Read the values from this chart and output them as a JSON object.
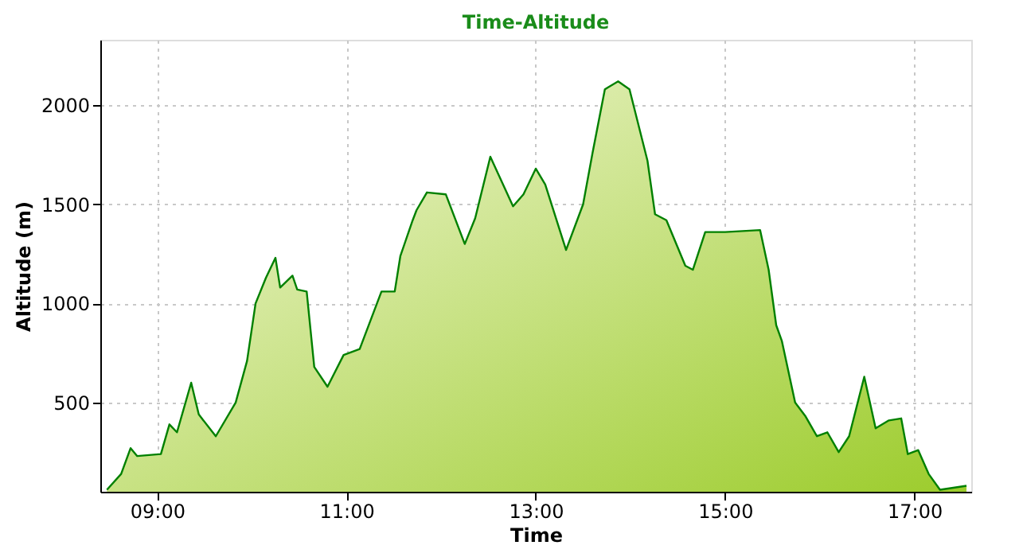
{
  "chart_data": {
    "type": "area",
    "title": "Time-Altitude",
    "xlabel": "Time",
    "ylabel": "Altitude (m)",
    "xlim": [
      8.4,
      17.6
    ],
    "ylim": [
      50,
      2330
    ],
    "xticks": [
      {
        "value": 9,
        "label": "09:00"
      },
      {
        "value": 11,
        "label": "11:00"
      },
      {
        "value": 13,
        "label": "13:00"
      },
      {
        "value": 15,
        "label": "15:00"
      },
      {
        "value": 17,
        "label": "17:00"
      }
    ],
    "yticks": [
      500,
      1000,
      1500,
      2000
    ],
    "grid": true,
    "series": [
      {
        "color": "#008000",
        "x": [
          8.47,
          8.62,
          8.72,
          8.79,
          9.04,
          9.13,
          9.21,
          9.36,
          9.44,
          9.62,
          9.83,
          9.95,
          10.04,
          10.15,
          10.25,
          10.3,
          10.43,
          10.48,
          10.58,
          10.66,
          10.8,
          10.97,
          11.14,
          11.37,
          11.51,
          11.57,
          11.7,
          11.74,
          11.85,
          12.05,
          12.25,
          12.36,
          12.52,
          12.76,
          12.87,
          13.0,
          13.1,
          13.32,
          13.5,
          13.6,
          13.73,
          13.87,
          13.99,
          14.18,
          14.26,
          14.38,
          14.58,
          14.66,
          14.79,
          15.0,
          15.37,
          15.46,
          15.54,
          15.6,
          15.74,
          15.85,
          15.97,
          16.08,
          16.2,
          16.31,
          16.47,
          16.59,
          16.73,
          16.86,
          16.93,
          17.04,
          17.15,
          17.27,
          17.55
        ],
        "values": [
          60,
          140,
          270,
          230,
          240,
          390,
          350,
          600,
          440,
          330,
          500,
          710,
          1000,
          1130,
          1230,
          1080,
          1140,
          1070,
          1060,
          680,
          580,
          740,
          770,
          1060,
          1060,
          1240,
          1420,
          1470,
          1560,
          1550,
          1300,
          1430,
          1740,
          1490,
          1550,
          1680,
          1600,
          1270,
          1500,
          1760,
          2080,
          2120,
          2080,
          1720,
          1450,
          1420,
          1190,
          1170,
          1360,
          1360,
          1370,
          1170,
          890,
          810,
          500,
          430,
          330,
          350,
          250,
          330,
          630,
          370,
          410,
          420,
          240,
          260,
          140,
          60,
          80
        ]
      }
    ]
  }
}
